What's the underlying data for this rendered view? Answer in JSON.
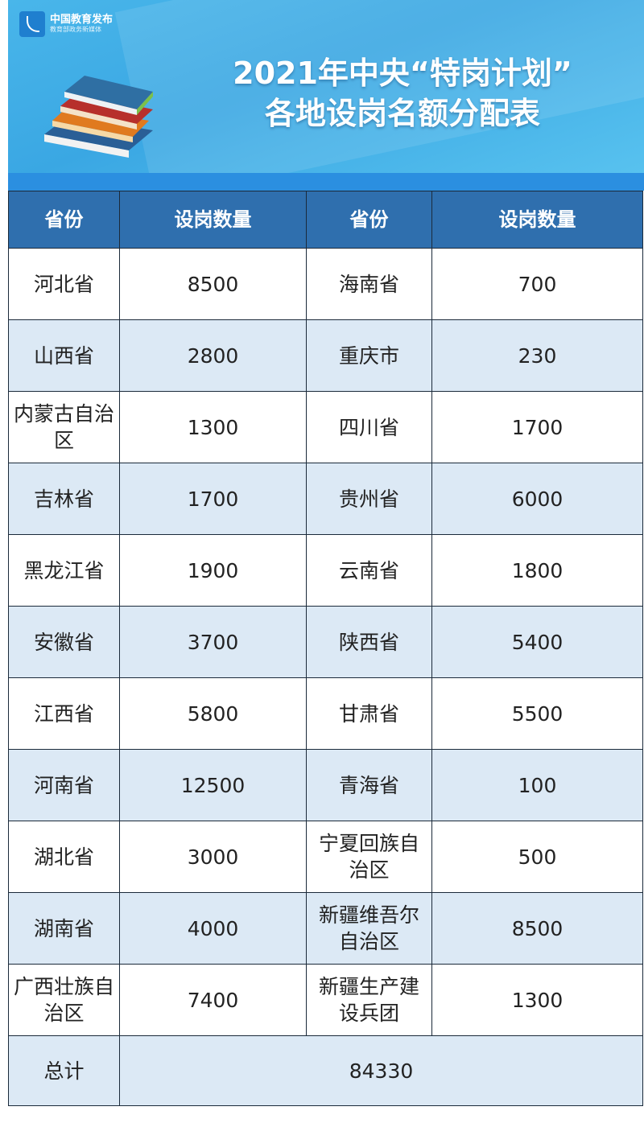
{
  "logo": {
    "name": "中国教育发布",
    "tagline": "教育部政务新媒体"
  },
  "title": {
    "line1": "2021年中央“特岗计划”",
    "line2": "各地设岗名额分配表"
  },
  "table": {
    "headers": [
      "省份",
      "设岗数量",
      "省份",
      "设岗数量"
    ],
    "rows": [
      [
        "河北省",
        "8500",
        "海南省",
        "700"
      ],
      [
        "山西省",
        "2800",
        "重庆市",
        "230"
      ],
      [
        "内蒙古自治区",
        "1300",
        "四川省",
        "1700"
      ],
      [
        "吉林省",
        "1700",
        "贵州省",
        "6000"
      ],
      [
        "黑龙江省",
        "1900",
        "云南省",
        "1800"
      ],
      [
        "安徽省",
        "3700",
        "陕西省",
        "5400"
      ],
      [
        "江西省",
        "5800",
        "甘肃省",
        "5500"
      ],
      [
        "河南省",
        "12500",
        "青海省",
        "100"
      ],
      [
        "湖北省",
        "3000",
        "宁夏回族自治区",
        "500"
      ],
      [
        "湖南省",
        "4000",
        "新疆维吾尔自治区",
        "8500"
      ],
      [
        "广西壮族自治区",
        "7400",
        "新疆生产建设兵团",
        "1300"
      ]
    ],
    "total_label": "总计",
    "total_value": "84330"
  },
  "colors": {
    "header": "#2f6fae",
    "alt_row": "#dce9f5",
    "banner": "#3aa7e3"
  }
}
